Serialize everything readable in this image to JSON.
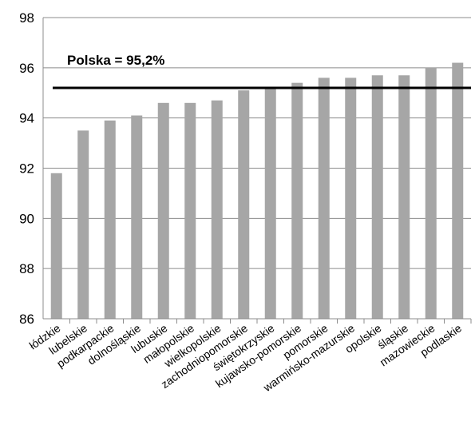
{
  "chart_data": {
    "type": "bar",
    "title": "",
    "xlabel": "",
    "ylabel": "",
    "ylim": [
      86,
      98
    ],
    "yticks": [
      86,
      88,
      90,
      92,
      94,
      96,
      98
    ],
    "grid": true,
    "legend": "none",
    "categories": [
      "łódzkie",
      "lubelskie",
      "podkarpackie",
      "dolnośląskie",
      "lubuskie",
      "małopolskie",
      "wielkopolskie",
      "zachodniopomorskie",
      "świętokrzyskie",
      "kujawsko-pomorskie",
      "pomorskie",
      "warmińsko-mazurskie",
      "opolskie",
      "śląskie",
      "mazowieckie",
      "podlaskie"
    ],
    "values": [
      91.8,
      93.5,
      93.9,
      94.1,
      94.6,
      94.6,
      94.7,
      95.1,
      95.2,
      95.4,
      95.6,
      95.6,
      95.7,
      95.7,
      96.0,
      96.2
    ],
    "reference_line": {
      "label": "Polska = 95,2%",
      "value": 95.2
    },
    "colors": {
      "bar": "#a6a6a6",
      "grid": "#8c8c8c",
      "reference": "#000000"
    }
  }
}
